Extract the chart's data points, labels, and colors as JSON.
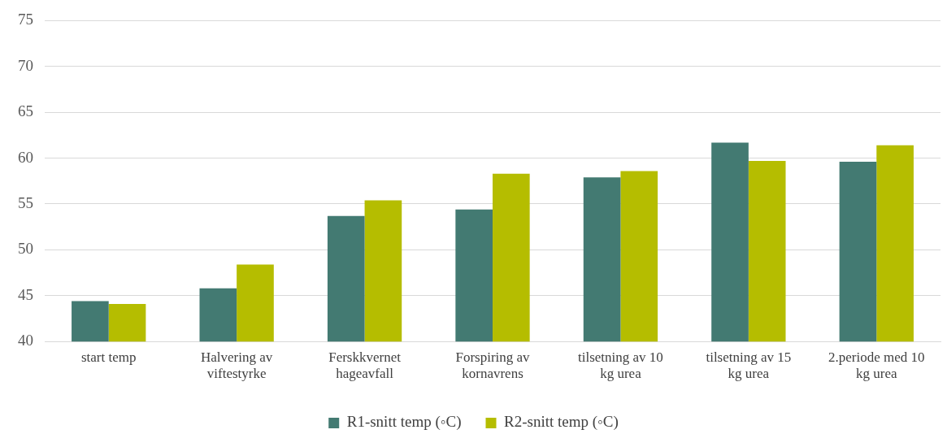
{
  "chart_data": {
    "type": "bar",
    "categories": [
      "start temp",
      "Halvering av viftestyrke",
      "Ferskkvernet hageavfall",
      "Forspiring av kornavrens",
      "tilsetning av 10 kg urea",
      "tilsetning av 15 kg urea",
      "2.periode med 10 kg urea"
    ],
    "series": [
      {
        "name": "R1-snitt temp (◦C)",
        "color": "#437a72",
        "values": [
          44.4,
          45.8,
          53.7,
          54.4,
          57.9,
          61.7,
          59.6
        ]
      },
      {
        "name": "R2-snitt temp (◦C)",
        "color": "#b5bd00",
        "values": [
          44.1,
          48.4,
          55.4,
          58.3,
          58.6,
          59.7,
          61.4
        ]
      }
    ],
    "ylim": [
      40,
      75
    ],
    "yticks": [
      40,
      45,
      50,
      55,
      60,
      65,
      70,
      75
    ],
    "grid": "y",
    "legend": "bottom"
  }
}
